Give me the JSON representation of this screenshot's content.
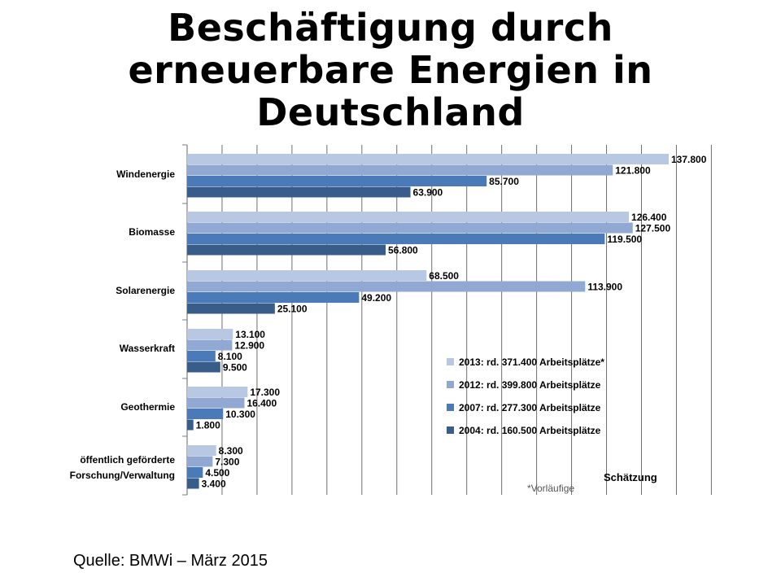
{
  "title": "Beschäftigung durch erneuerbare Energien in Deutschland",
  "source": "Quelle: BMWi – März 2015",
  "chart_data": {
    "type": "bar",
    "orientation": "horizontal",
    "categories": [
      "Windenergie",
      "Biomasse",
      "Solarenergie",
      "Wasserkraft",
      "Geothermie",
      "öffentlich geförderte Forschung/Verwaltung"
    ],
    "series": [
      {
        "name": "2013: rd. 371.400 Arbeitsplätze*",
        "color": "#b9c8e2",
        "values": [
          137800,
          126400,
          68500,
          13100,
          17300,
          8300
        ],
        "labels": [
          "137.800",
          "126.400",
          "68.500",
          "13.100",
          "17.300",
          "8.300"
        ]
      },
      {
        "name": "2012: rd. 399.800 Arbeitsplätze",
        "color": "#91a8d2",
        "values": [
          121800,
          127500,
          113900,
          12900,
          16400,
          7300
        ],
        "labels": [
          "121.800",
          "127.500",
          "113.900",
          "12.900",
          "16.400",
          "7.300"
        ]
      },
      {
        "name": "2007: rd. 277.300 Arbeitsplätze",
        "color": "#4a7ab8",
        "values": [
          85700,
          119500,
          49200,
          8100,
          10300,
          4500
        ],
        "labels": [
          "85.700",
          "119.500",
          "49.200",
          "8.100",
          "10.300",
          "4.500"
        ]
      },
      {
        "name": "2004: rd. 160.500 Arbeitsplätze",
        "color": "#385d8a",
        "values": [
          63900,
          56800,
          25100,
          9500,
          1800,
          3400
        ],
        "labels": [
          "63.900",
          "56.800",
          "25.100",
          "9.500",
          "1.800",
          "3.400"
        ]
      }
    ],
    "xlim": [
      0,
      150000
    ],
    "grid": true,
    "legend_position": "bottom-right",
    "annotations": [
      "Schätzung",
      "*Vorläufige"
    ]
  }
}
